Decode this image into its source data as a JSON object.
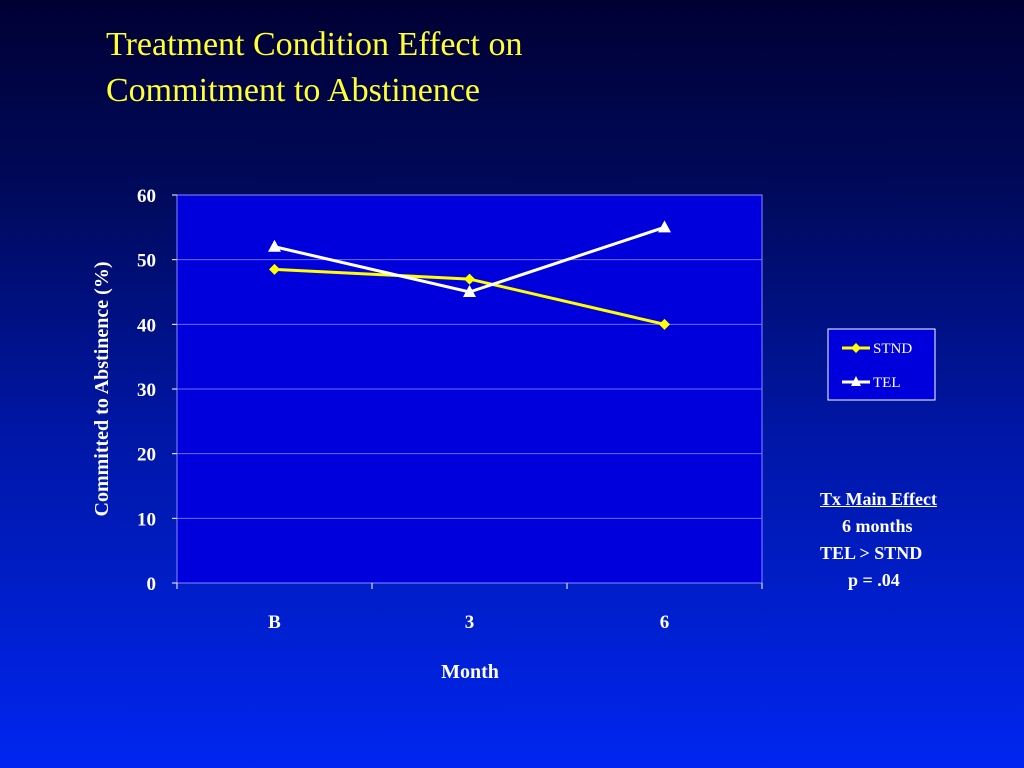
{
  "slide": {
    "title_line1": "Treatment Condition Effect on",
    "title_line2": "Commitment to Abstinence"
  },
  "annotation": {
    "heading": "Tx Main Effect",
    "line1": "6 months",
    "line2": "TEL > STND",
    "line3": "p = .04"
  },
  "colors": {
    "title": "#ffff33",
    "plot_area": "#0000dd",
    "stnd_series": "#ffff00",
    "tel_series": "#ffffff",
    "gridline": "#6b6bff"
  },
  "chart_data": {
    "type": "line",
    "title": "",
    "xlabel": "Month",
    "ylabel": "Committed to Abstinence (%)",
    "categories": [
      "B",
      "3",
      "6"
    ],
    "ylim": [
      0,
      60
    ],
    "yticks": [
      0,
      10,
      20,
      30,
      40,
      50,
      60
    ],
    "grid": true,
    "legend_position": "right",
    "series": [
      {
        "name": "STND",
        "values": [
          48.5,
          47,
          40
        ],
        "marker": "diamond",
        "color": "#ffff00"
      },
      {
        "name": "TEL",
        "values": [
          52,
          45,
          55
        ],
        "marker": "triangle",
        "color": "#ffffff"
      }
    ]
  }
}
